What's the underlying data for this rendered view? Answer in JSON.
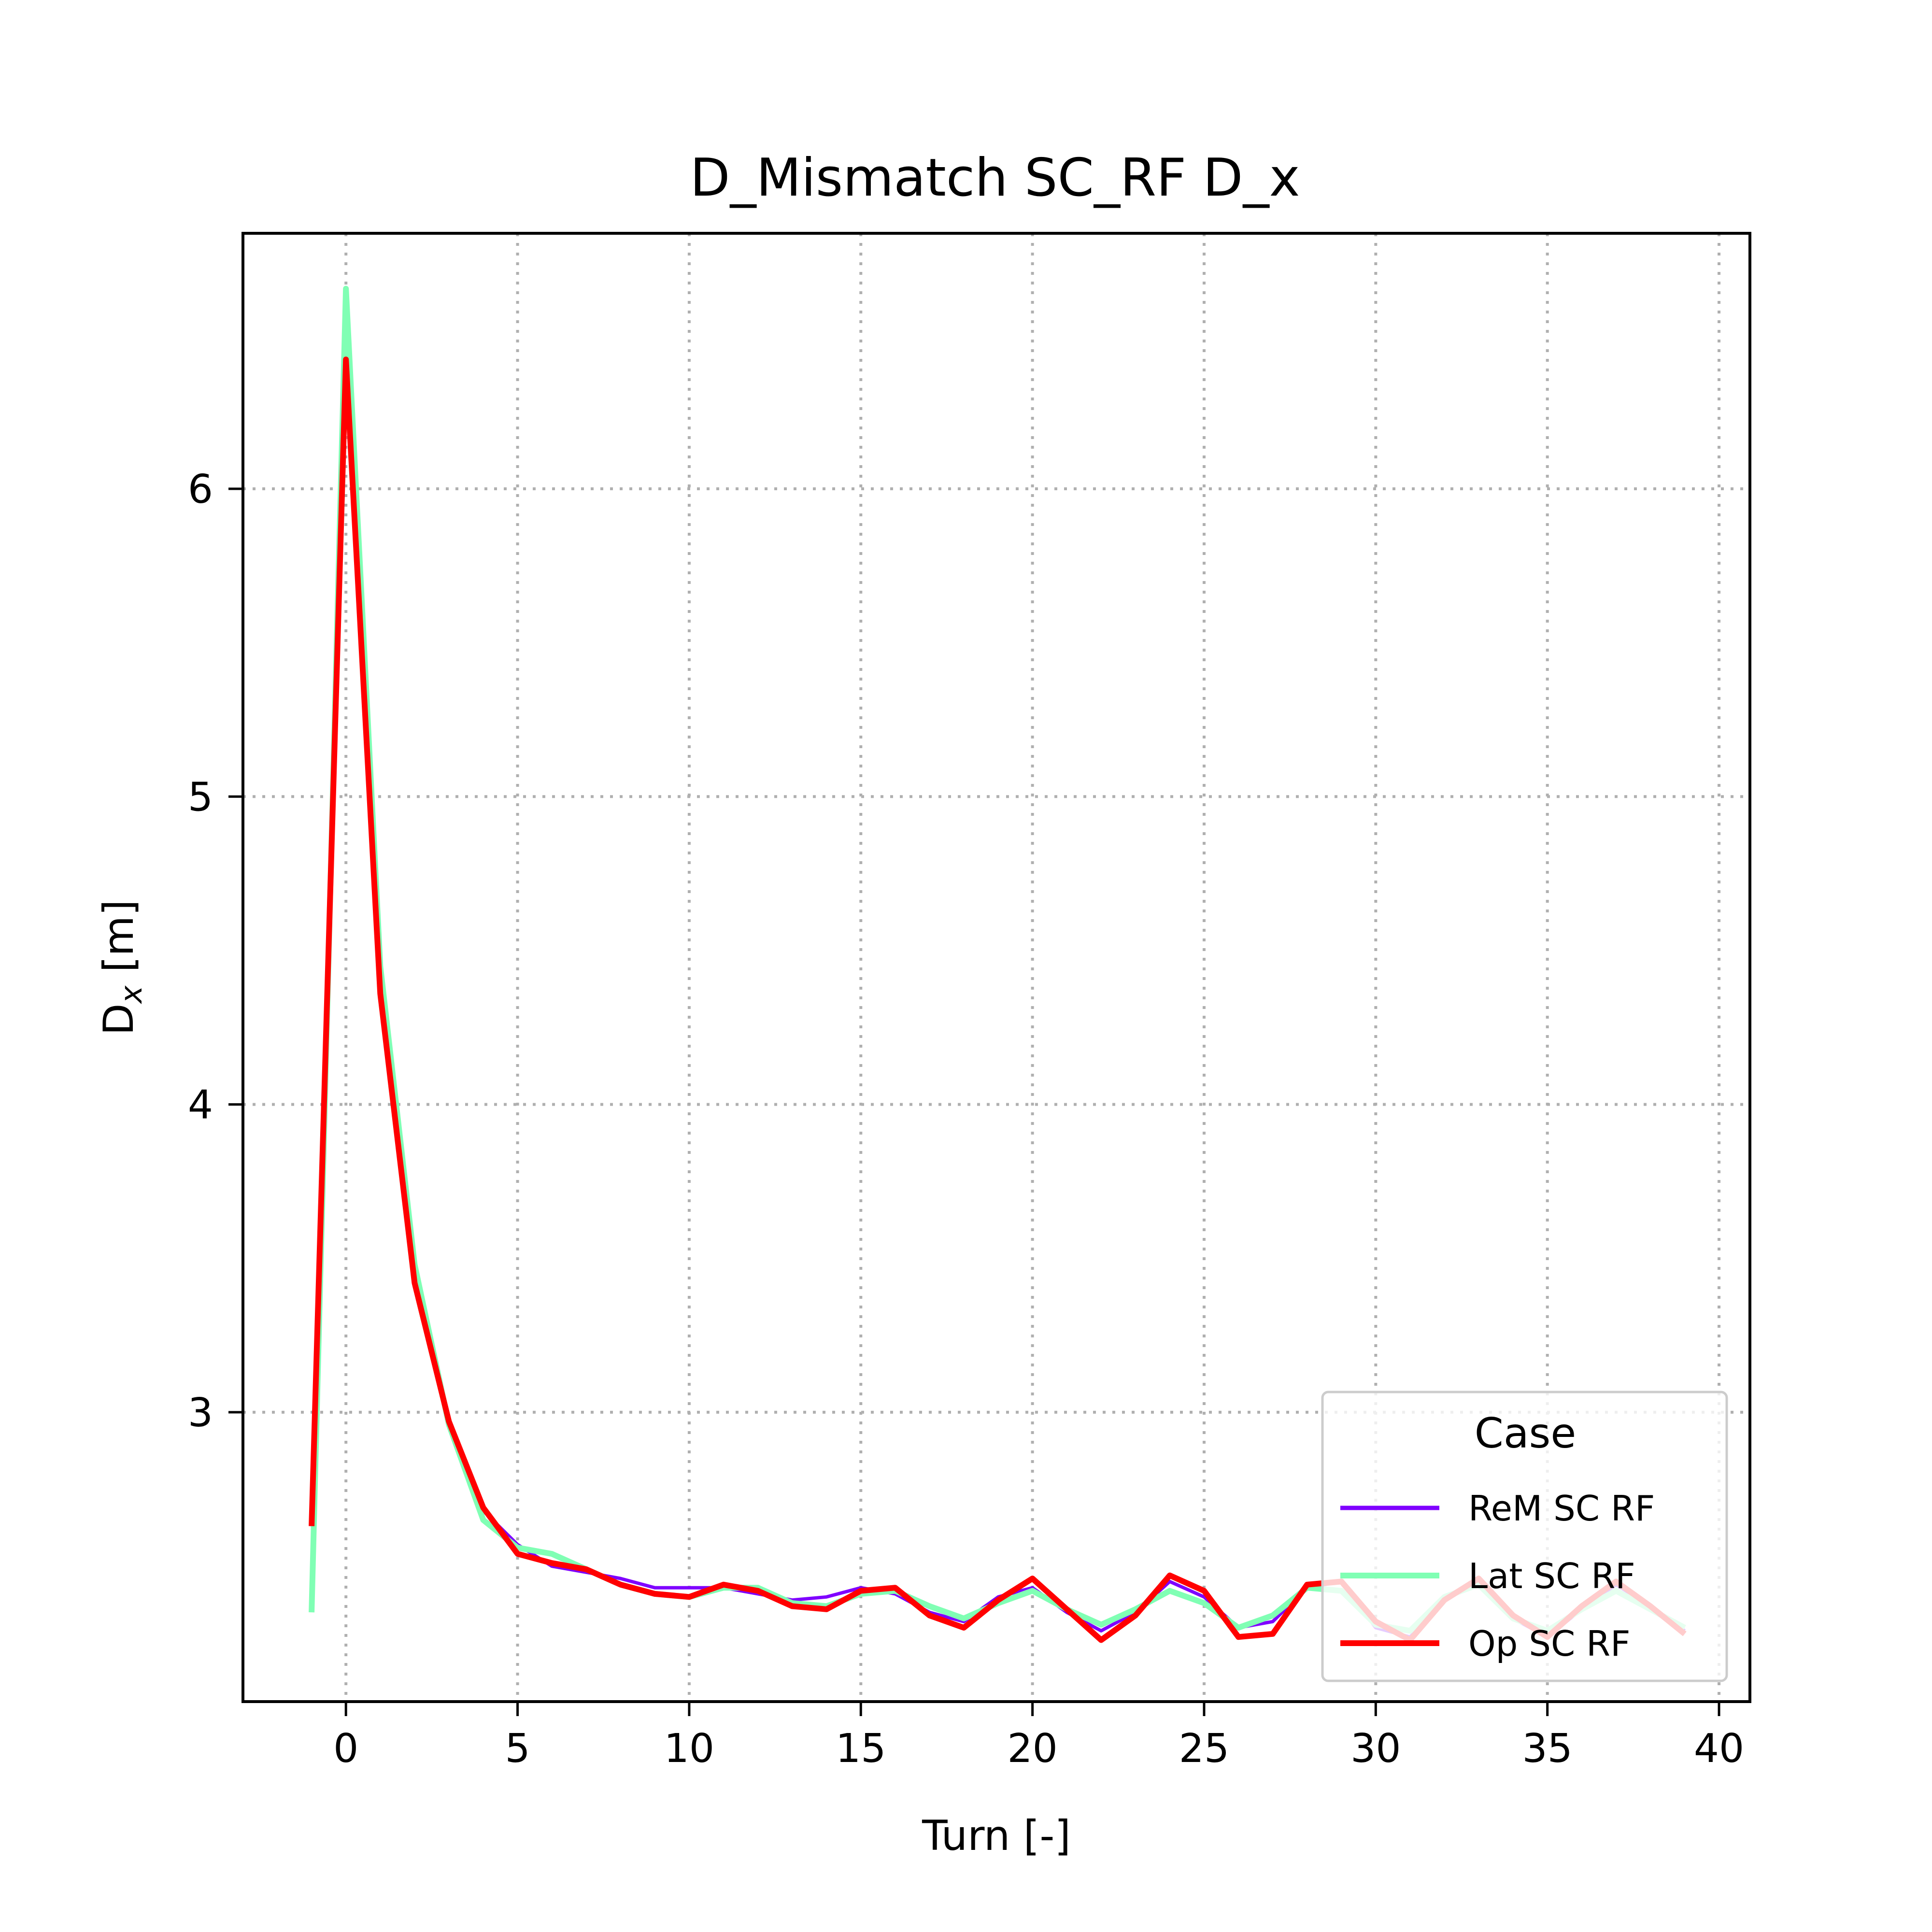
{
  "chart_data": {
    "type": "line",
    "title": "D_Mismatch SC_RF D_x",
    "xlabel": "Turn [-]",
    "ylabel": "D_x [m]",
    "xlim": [
      -3,
      40.9
    ],
    "ylim": [
      2.06,
      6.83
    ],
    "xticks": [
      0,
      5,
      10,
      15,
      20,
      25,
      30,
      35,
      40
    ],
    "yticks": [
      3,
      4,
      5,
      6
    ],
    "grid": true,
    "legend": {
      "title": "Case",
      "position": "lower-right"
    },
    "x": [
      -1,
      0,
      1,
      2,
      3,
      4,
      5,
      6,
      7,
      8,
      9,
      10,
      11,
      12,
      13,
      14,
      15,
      16,
      17,
      18,
      19,
      20,
      21,
      22,
      23,
      24,
      25,
      26,
      27,
      28,
      29,
      30,
      31,
      32,
      33,
      34,
      35,
      36,
      37,
      38,
      39
    ],
    "series": [
      {
        "name": "ReM SC RF",
        "color": "#7f00ff",
        "values": [
          2.63,
          6.4,
          4.35,
          3.42,
          2.98,
          2.68,
          2.57,
          2.5,
          2.48,
          2.46,
          2.43,
          2.43,
          2.43,
          2.41,
          2.39,
          2.4,
          2.43,
          2.41,
          2.35,
          2.32,
          2.4,
          2.43,
          2.35,
          2.29,
          2.35,
          2.45,
          2.4,
          2.3,
          2.32,
          2.43,
          2.45,
          2.3,
          2.27,
          2.39,
          2.45,
          2.33,
          2.27,
          2.36,
          2.44,
          2.37,
          2.29
        ]
      },
      {
        "name": "Lat SC RF",
        "color": "#80ffb4",
        "values": [
          2.35,
          6.65,
          4.45,
          3.48,
          2.96,
          2.65,
          2.56,
          2.54,
          2.49,
          2.44,
          2.41,
          2.4,
          2.43,
          2.43,
          2.38,
          2.37,
          2.41,
          2.42,
          2.37,
          2.33,
          2.38,
          2.42,
          2.36,
          2.31,
          2.36,
          2.42,
          2.38,
          2.3,
          2.34,
          2.43,
          2.42,
          2.31,
          2.29,
          2.4,
          2.44,
          2.33,
          2.29,
          2.36,
          2.42,
          2.36,
          2.3
        ]
      },
      {
        "name": "Op SC RF",
        "color": "#ff0000",
        "values": [
          2.63,
          6.42,
          4.36,
          3.42,
          2.97,
          2.69,
          2.54,
          2.51,
          2.49,
          2.44,
          2.41,
          2.4,
          2.44,
          2.42,
          2.37,
          2.36,
          2.42,
          2.43,
          2.34,
          2.3,
          2.39,
          2.46,
          2.36,
          2.26,
          2.34,
          2.47,
          2.42,
          2.27,
          2.28,
          2.44,
          2.45,
          2.32,
          2.26,
          2.39,
          2.46,
          2.34,
          2.27,
          2.37,
          2.45,
          2.37,
          2.28
        ]
      }
    ]
  }
}
